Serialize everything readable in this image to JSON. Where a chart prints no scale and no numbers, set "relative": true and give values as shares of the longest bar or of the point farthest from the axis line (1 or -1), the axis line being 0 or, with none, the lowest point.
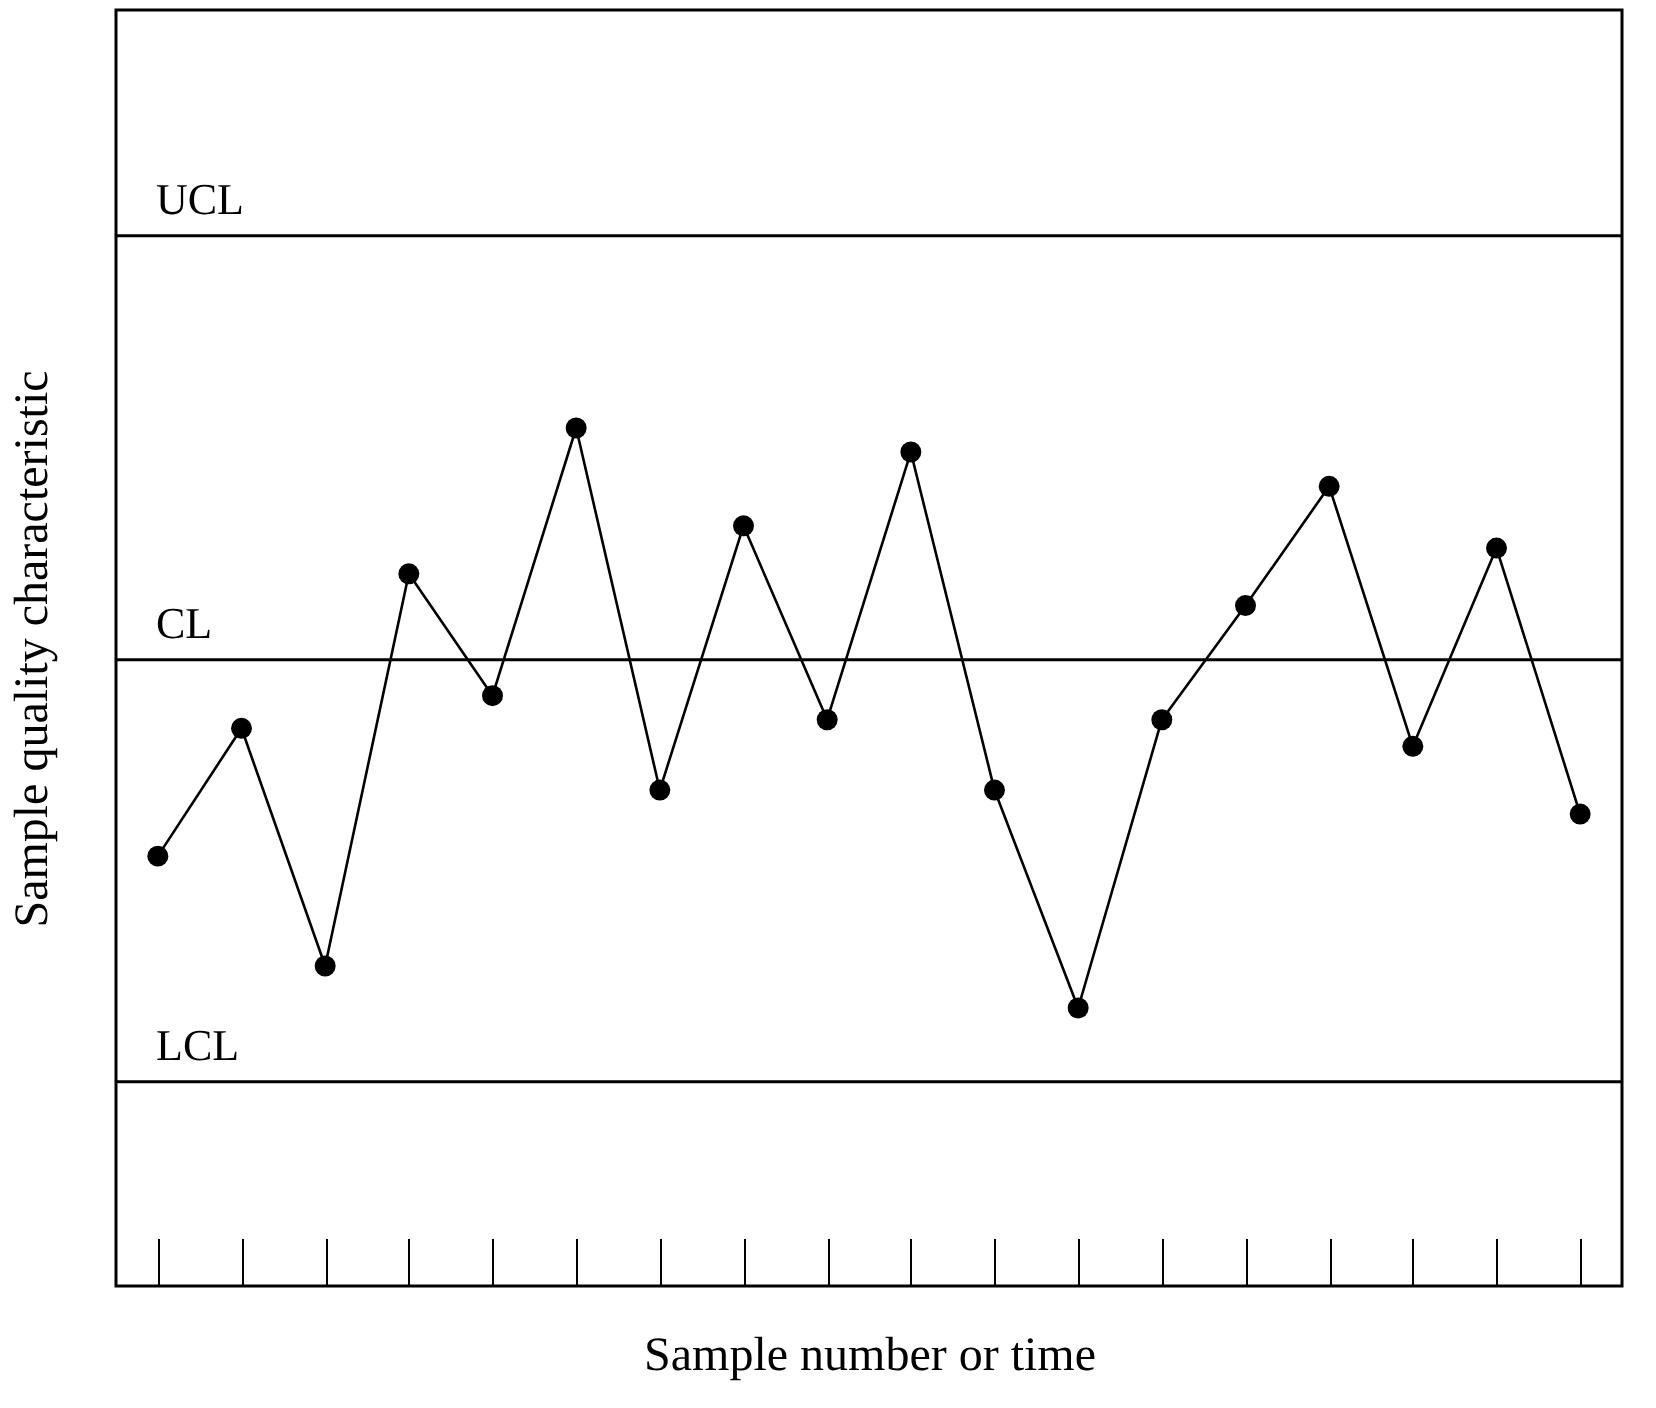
{
  "chart_data": {
    "type": "line",
    "xlabel": "Sample number or time",
    "ylabel": "Sample quality characteristic",
    "relative": true,
    "categories": [
      null,
      null,
      null,
      null,
      null,
      null,
      null,
      null,
      null,
      null,
      null,
      null,
      null,
      null,
      null,
      null,
      null,
      null
    ],
    "series": [
      {
        "color": "#000000",
        "values": [
          0.501,
          0.65,
          0.373,
          0.83,
          0.688,
          1,
          0.578,
          0.886,
          0.66,
          0.972,
          0.578,
          0.324,
          0.66,
          0.793,
          0.932,
          0.629,
          0.86,
          0.55
        ]
      }
    ],
    "ref_lines": [
      {
        "axis": "y",
        "value": 1.224,
        "label": "UCL",
        "color": "#000000"
      },
      {
        "axis": "y",
        "value": 0.73,
        "label": "CL",
        "color": "#000000"
      },
      {
        "axis": "y",
        "value": 0.238,
        "label": "LCL",
        "color": "#000000"
      }
    ],
    "marker": "circle",
    "line_style": "solid",
    "grid": false,
    "tick_labels": false
  }
}
